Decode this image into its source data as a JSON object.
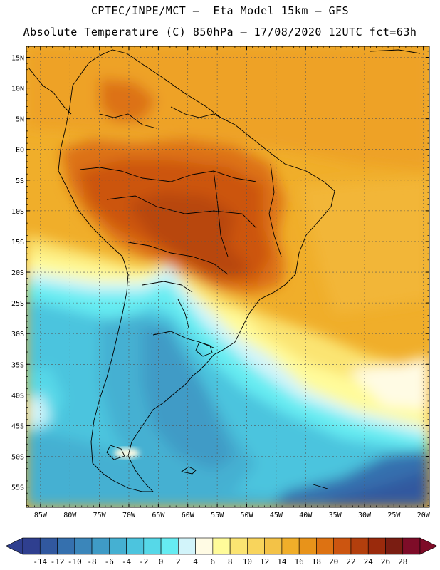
{
  "header": {
    "title_line1": "CPTEC/INPE/MCT —  Eta Model 15km — GFS",
    "title_line2": "Absolute Temperature (C) 850hPa — 17/08/2020 12UTC fct=63h"
  },
  "map": {
    "lat_labels": [
      "15N",
      "10N",
      "5N",
      "EQ",
      "5S",
      "10S",
      "15S",
      "20S",
      "25S",
      "30S",
      "35S",
      "40S",
      "45S",
      "50S",
      "55S"
    ],
    "lon_labels": [
      "85W",
      "80W",
      "75W",
      "70W",
      "65W",
      "60W",
      "55W",
      "50W",
      "45W",
      "40W",
      "35W",
      "30W",
      "25W",
      "20W"
    ],
    "lat_values": [
      15,
      10,
      5,
      0,
      -5,
      -10,
      -15,
      -20,
      -25,
      -30,
      -35,
      -40,
      -45,
      -50,
      -55
    ],
    "lon_values": [
      -85,
      -80,
      -75,
      -70,
      -65,
      -60,
      -55,
      -50,
      -45,
      -40,
      -35,
      -30,
      -25,
      -20
    ]
  },
  "colorbar": {
    "labels": [
      "-14",
      "-12",
      "-10",
      "-8",
      "-6",
      "-4",
      "-2",
      "0",
      "2",
      "4",
      "6",
      "8",
      "10",
      "12",
      "14",
      "16",
      "18",
      "20",
      "22",
      "24",
      "26",
      "28"
    ],
    "colors": [
      "#2f3f8f",
      "#31589f",
      "#3570ae",
      "#3b86ba",
      "#3f9bc6",
      "#45b0d2",
      "#4cc4de",
      "#56d8e8",
      "#66ecf2",
      "#d2f4fa",
      "#fffbe4",
      "#fffb9a",
      "#fbe472",
      "#f8d45c",
      "#f3c247",
      "#f0ae2a",
      "#e8931a",
      "#dd7212",
      "#cc5510",
      "#b33f0d",
      "#9a2a0c",
      "#7a1d12",
      "#7e0c28"
    ]
  }
}
